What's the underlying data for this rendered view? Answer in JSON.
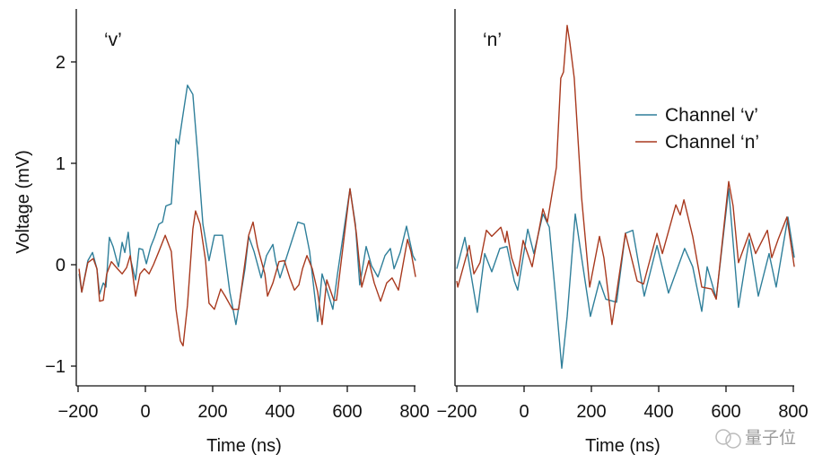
{
  "chart_data": [
    {
      "type": "line",
      "panel_label": "‘v’",
      "xlabel": "Time (ns)",
      "ylabel": "Voltage (mV)",
      "xlim": [
        -200,
        800
      ],
      "ylim": [
        -1.2,
        2.5
      ],
      "xticks": [
        -200,
        0,
        200,
        400,
        600,
        800
      ],
      "xtick_labels": [
        "−200",
        "0",
        "200",
        "400",
        "600",
        "800"
      ],
      "yticks": [
        -1,
        0,
        1,
        2
      ],
      "ytick_labels": [
        "−1",
        "0",
        "1",
        "2"
      ],
      "grid": false,
      "series": [
        {
          "name": "Channel ‘v’",
          "color": "#2f7f9a",
          "x": [
            -197,
            -189,
            -171,
            -157,
            -144,
            -136,
            -125,
            -117,
            -107,
            -96,
            -80,
            -69,
            -61,
            -51,
            -43,
            -29,
            -19,
            -8,
            3,
            16,
            27,
            40,
            51,
            61,
            77,
            91,
            99,
            109,
            125,
            141,
            155,
            171,
            189,
            205,
            229,
            251,
            269,
            296,
            307,
            323,
            344,
            360,
            379,
            387,
            400,
            421,
            453,
            472,
            488,
            512,
            525,
            539,
            557,
            571,
            608,
            624,
            637,
            656,
            672,
            691,
            712,
            728,
            739,
            757,
            776,
            795,
            803
          ],
          "y": [
            -0.09,
            -0.27,
            0.04,
            0.12,
            -0.04,
            -0.29,
            -0.18,
            -0.22,
            0.27,
            0.18,
            -0.02,
            0.22,
            0.12,
            0.32,
            0.04,
            -0.15,
            0.16,
            0.15,
            0.01,
            0.18,
            0.27,
            0.4,
            0.42,
            0.58,
            0.6,
            1.24,
            1.19,
            1.42,
            1.77,
            1.68,
            1.11,
            0.4,
            0.04,
            0.29,
            0.29,
            -0.27,
            -0.59,
            -0.04,
            0.28,
            0.13,
            -0.13,
            0.09,
            0.2,
            0.04,
            -0.13,
            0.09,
            0.42,
            0.4,
            0.13,
            -0.56,
            -0.09,
            -0.24,
            -0.44,
            -0.09,
            0.75,
            0.4,
            -0.2,
            0.18,
            -0.01,
            -0.12,
            0.09,
            0.16,
            -0.04,
            0.12,
            0.38,
            0.09,
            0.04
          ]
        },
        {
          "name": "Channel ‘n’",
          "color": "#a8391e",
          "x": [
            -197,
            -189,
            -171,
            -155,
            -144,
            -136,
            -125,
            -115,
            -101,
            -83,
            -69,
            -56,
            -45,
            -29,
            -16,
            -3,
            11,
            24,
            40,
            59,
            77,
            91,
            104,
            112,
            125,
            141,
            149,
            163,
            179,
            189,
            205,
            224,
            237,
            259,
            277,
            307,
            320,
            333,
            355,
            363,
            379,
            397,
            413,
            429,
            443,
            456,
            467,
            480,
            496,
            512,
            525,
            539,
            560,
            568,
            608,
            627,
            643,
            664,
            680,
            699,
            717,
            733,
            752,
            779,
            789,
            803
          ],
          "y": [
            -0.04,
            -0.27,
            0.02,
            0.06,
            -0.04,
            -0.36,
            -0.35,
            -0.09,
            0.03,
            -0.04,
            -0.09,
            -0.03,
            0.09,
            -0.31,
            -0.09,
            -0.04,
            -0.09,
            0,
            0.13,
            0.29,
            0.13,
            -0.44,
            -0.75,
            -0.8,
            -0.4,
            0.35,
            0.53,
            0.4,
            0.04,
            -0.38,
            -0.44,
            -0.24,
            -0.31,
            -0.44,
            -0.44,
            0.29,
            0.42,
            0.18,
            -0.09,
            -0.31,
            -0.18,
            0.03,
            0.04,
            -0.13,
            -0.25,
            -0.2,
            -0.04,
            0.09,
            -0.04,
            -0.27,
            -0.59,
            -0.15,
            -0.35,
            -0.35,
            0.75,
            0.31,
            -0.22,
            0.04,
            -0.18,
            -0.36,
            -0.18,
            -0.13,
            -0.25,
            0.25,
            0.13,
            -0.12
          ]
        }
      ]
    },
    {
      "type": "line",
      "panel_label": "‘n’",
      "xlabel": "Time (ns)",
      "xlim": [
        -200,
        800
      ],
      "ylim": [
        -1.2,
        2.5
      ],
      "xticks": [
        -200,
        0,
        200,
        400,
        600,
        800
      ],
      "xtick_labels": [
        "−200",
        "0",
        "200",
        "400",
        "600",
        "800"
      ],
      "grid": false,
      "legend": {
        "position": "top-right",
        "entries": [
          "Channel ‘v’",
          "Channel ‘n’"
        ]
      },
      "series": [
        {
          "name": "Channel ‘v’",
          "color": "#2f7f9a",
          "x": [
            -200,
            -176,
            -139,
            -117,
            -96,
            -72,
            -51,
            -29,
            -19,
            11,
            29,
            56,
            75,
            96,
            112,
            128,
            152,
            171,
            197,
            224,
            243,
            275,
            301,
            323,
            357,
            395,
            429,
            477,
            501,
            528,
            544,
            571,
            608,
            637,
            669,
            696,
            728,
            749,
            784,
            803
          ],
          "y": [
            -0.04,
            0.27,
            -0.47,
            0.11,
            -0.07,
            0.16,
            0.18,
            -0.16,
            -0.25,
            0.35,
            0.11,
            0.5,
            0.37,
            -0.4,
            -1.02,
            -0.51,
            0.5,
            0.07,
            -0.51,
            -0.16,
            -0.34,
            -0.37,
            0.31,
            0.34,
            -0.31,
            0.19,
            -0.28,
            0.16,
            -0.02,
            -0.46,
            -0.02,
            -0.33,
            0.75,
            -0.42,
            0.25,
            -0.31,
            0.11,
            -0.22,
            0.47,
            0.07
          ]
        },
        {
          "name": "Channel ‘n’",
          "color": "#a8391e",
          "x": [
            -200,
            -197,
            -163,
            -149,
            -131,
            -112,
            -96,
            -69,
            -56,
            -51,
            -37,
            -19,
            -3,
            24,
            56,
            69,
            96,
            109,
            117,
            128,
            136,
            149,
            171,
            195,
            224,
            237,
            261,
            301,
            336,
            355,
            395,
            411,
            451,
            464,
            475,
            501,
            528,
            557,
            571,
            608,
            621,
            637,
            669,
            688,
            723,
            736,
            755,
            781,
            803
          ],
          "y": [
            -0.16,
            -0.22,
            0.19,
            -0.09,
            0.02,
            0.34,
            0.28,
            0.37,
            0.22,
            0.33,
            0.07,
            -0.11,
            0.24,
            -0.02,
            0.55,
            0.42,
            0.96,
            1.84,
            1.9,
            2.36,
            2.19,
            1.84,
            0.66,
            -0.22,
            0.28,
            0.07,
            -0.59,
            0.31,
            -0.16,
            -0.19,
            0.31,
            0.11,
            0.59,
            0.49,
            0.64,
            0.28,
            -0.22,
            -0.24,
            -0.34,
            0.82,
            0.58,
            0.02,
            0.31,
            0.11,
            0.34,
            0.07,
            0.25,
            0.47,
            -0.02
          ]
        }
      ]
    }
  ],
  "watermark": "量子位"
}
